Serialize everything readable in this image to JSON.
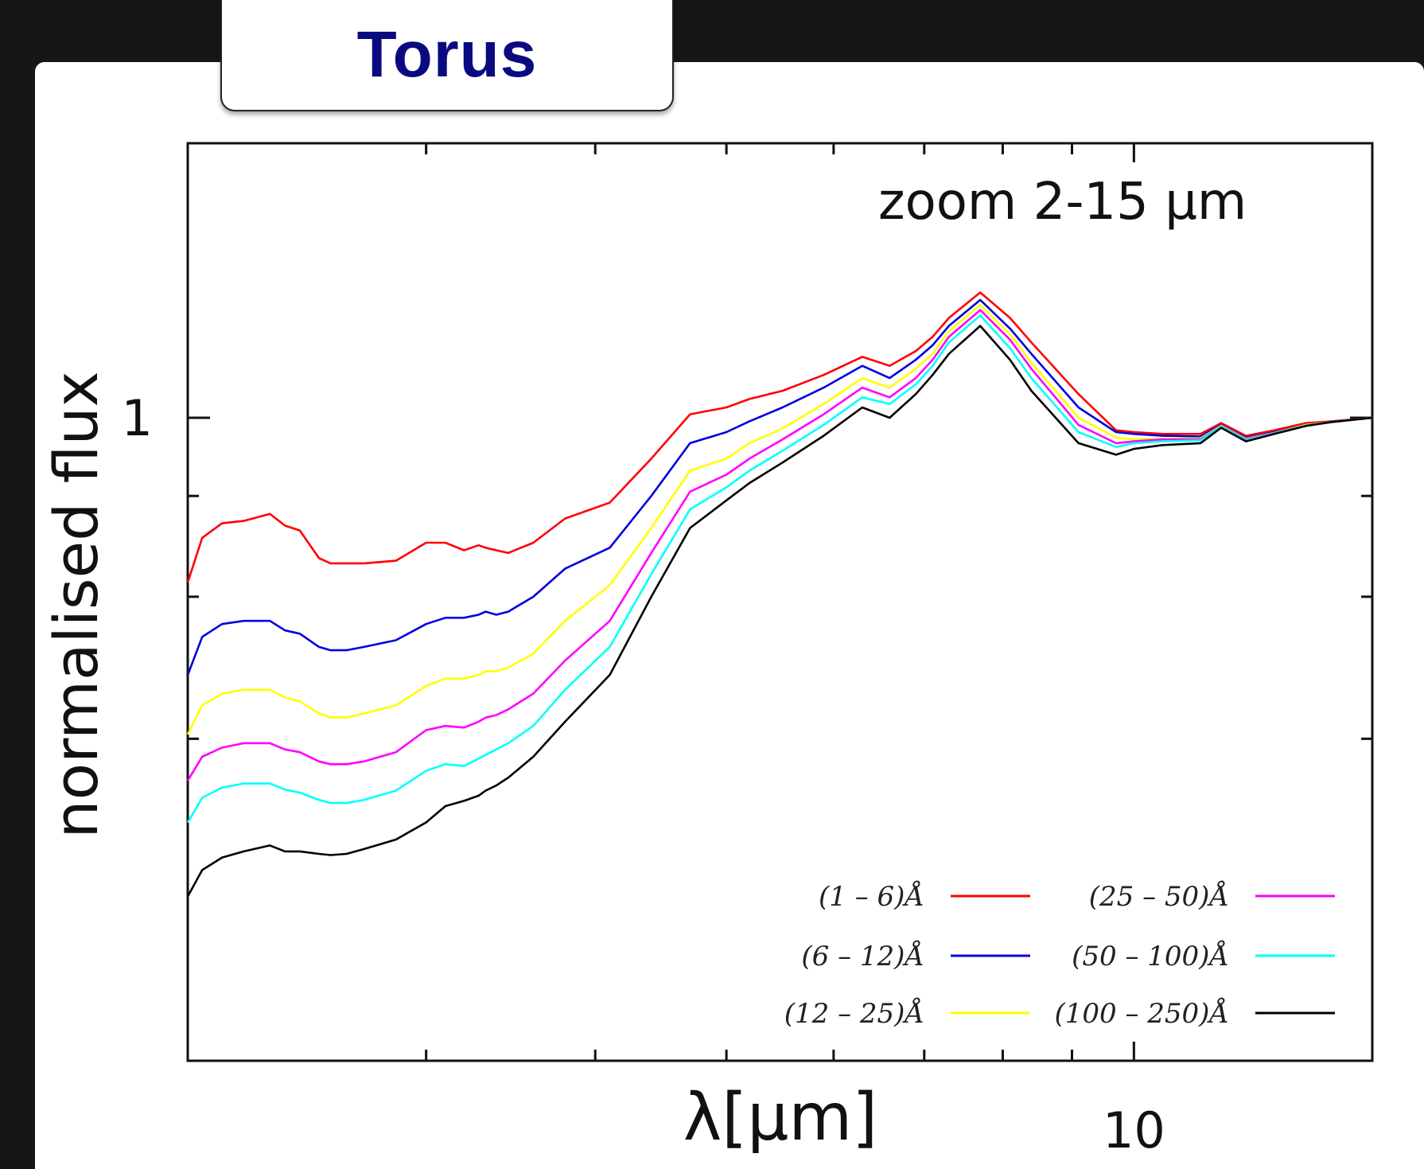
{
  "title": "Torus",
  "chart_data": {
    "type": "line",
    "xlabel": "λ[μm]",
    "ylabel": "normalised flux",
    "annotation": "zoom 2-15 μm",
    "xscale": "log",
    "yscale": "log",
    "xlim": [
      2,
      15
    ],
    "xticks": [
      {
        "value": 10,
        "label": "10"
      }
    ],
    "yticks": [
      {
        "value": 1,
        "label": "1"
      }
    ],
    "legend": {
      "placement": "bottom-right",
      "columns": 2
    },
    "series": [
      {
        "name": "(1 – 6)Å",
        "color": "#ff0000",
        "x": [
          2.0,
          2.05,
          2.12,
          2.2,
          2.3,
          2.36,
          2.42,
          2.5,
          2.55,
          2.62,
          2.7,
          2.85,
          3.0,
          3.1,
          3.2,
          3.28,
          3.32,
          3.38,
          3.45,
          3.6,
          3.8,
          4.1,
          4.4,
          4.7,
          5.0,
          5.2,
          5.5,
          5.9,
          6.3,
          6.6,
          6.9,
          7.1,
          7.3,
          7.7,
          8.1,
          8.4,
          9.1,
          9.7,
          10.0,
          10.5,
          11.2,
          11.6,
          12.1,
          12.7,
          13.4,
          14.0,
          15.0
        ],
        "y": [
          0.625,
          0.71,
          0.74,
          0.745,
          0.76,
          0.735,
          0.725,
          0.67,
          0.66,
          0.66,
          0.66,
          0.665,
          0.7,
          0.7,
          0.685,
          0.695,
          0.69,
          0.685,
          0.68,
          0.7,
          0.75,
          0.785,
          0.89,
          1.01,
          1.03,
          1.055,
          1.08,
          1.13,
          1.19,
          1.16,
          1.21,
          1.26,
          1.33,
          1.43,
          1.33,
          1.24,
          1.07,
          0.965,
          0.96,
          0.955,
          0.955,
          0.985,
          0.95,
          0.965,
          0.985,
          0.99,
          1.0
        ]
      },
      {
        "name": "(6 – 12)Å",
        "color": "#0000e0",
        "x": [
          2.0,
          2.05,
          2.12,
          2.2,
          2.3,
          2.36,
          2.42,
          2.5,
          2.55,
          2.62,
          2.7,
          2.85,
          3.0,
          3.1,
          3.2,
          3.28,
          3.32,
          3.38,
          3.45,
          3.6,
          3.8,
          4.1,
          4.4,
          4.7,
          5.0,
          5.2,
          5.5,
          5.9,
          6.3,
          6.6,
          6.9,
          7.1,
          7.3,
          7.7,
          8.1,
          8.4,
          9.1,
          9.7,
          10.0,
          10.5,
          11.2,
          11.6,
          12.1,
          12.7,
          13.4,
          14.0,
          15.0
        ],
        "y": [
          0.48,
          0.535,
          0.555,
          0.56,
          0.56,
          0.545,
          0.54,
          0.52,
          0.515,
          0.515,
          0.52,
          0.53,
          0.555,
          0.565,
          0.565,
          0.57,
          0.575,
          0.57,
          0.575,
          0.6,
          0.65,
          0.69,
          0.8,
          0.93,
          0.96,
          0.99,
          1.03,
          1.09,
          1.16,
          1.12,
          1.18,
          1.23,
          1.3,
          1.4,
          1.29,
          1.2,
          1.03,
          0.96,
          0.955,
          0.95,
          0.948,
          0.98,
          0.945,
          0.96,
          0.98,
          0.988,
          1.0
        ]
      },
      {
        "name": "(12 – 25)Å",
        "color": "#ffff00",
        "x": [
          2.0,
          2.05,
          2.12,
          2.2,
          2.3,
          2.36,
          2.42,
          2.5,
          2.55,
          2.62,
          2.7,
          2.85,
          3.0,
          3.1,
          3.2,
          3.28,
          3.32,
          3.38,
          3.45,
          3.6,
          3.8,
          4.1,
          4.4,
          4.7,
          5.0,
          5.2,
          5.5,
          5.9,
          6.3,
          6.6,
          6.9,
          7.1,
          7.3,
          7.7,
          8.1,
          8.4,
          9.1,
          9.7,
          10.0,
          10.5,
          11.2,
          11.6,
          12.1,
          12.7,
          13.4,
          14.0,
          15.0
        ],
        "y": [
          0.405,
          0.44,
          0.455,
          0.46,
          0.46,
          0.45,
          0.445,
          0.43,
          0.425,
          0.425,
          0.43,
          0.44,
          0.465,
          0.475,
          0.475,
          0.48,
          0.485,
          0.485,
          0.49,
          0.51,
          0.56,
          0.62,
          0.73,
          0.86,
          0.89,
          0.93,
          0.97,
          1.04,
          1.12,
          1.09,
          1.15,
          1.2,
          1.28,
          1.38,
          1.27,
          1.17,
          1.0,
          0.945,
          0.94,
          0.942,
          0.943,
          0.978,
          0.942,
          0.958,
          0.98,
          0.988,
          1.0
        ]
      },
      {
        "name": "(25 – 50)Å",
        "color": "#ff00ff",
        "x": [
          2.0,
          2.05,
          2.12,
          2.2,
          2.3,
          2.36,
          2.42,
          2.5,
          2.55,
          2.62,
          2.7,
          2.85,
          3.0,
          3.1,
          3.2,
          3.28,
          3.32,
          3.38,
          3.45,
          3.6,
          3.8,
          4.1,
          4.4,
          4.7,
          5.0,
          5.2,
          5.5,
          5.9,
          6.3,
          6.6,
          6.9,
          7.1,
          7.3,
          7.7,
          8.1,
          8.4,
          9.1,
          9.7,
          10.0,
          10.5,
          11.2,
          11.6,
          12.1,
          12.7,
          13.4,
          14.0,
          15.0
        ],
        "y": [
          0.355,
          0.38,
          0.39,
          0.395,
          0.395,
          0.388,
          0.385,
          0.375,
          0.372,
          0.372,
          0.375,
          0.385,
          0.41,
          0.415,
          0.413,
          0.42,
          0.425,
          0.428,
          0.435,
          0.455,
          0.5,
          0.56,
          0.68,
          0.81,
          0.85,
          0.89,
          0.94,
          1.01,
          1.09,
          1.06,
          1.12,
          1.18,
          1.26,
          1.36,
          1.25,
          1.15,
          0.98,
          0.93,
          0.935,
          0.94,
          0.94,
          0.976,
          0.94,
          0.957,
          0.978,
          0.988,
          1.0
        ]
      },
      {
        "name": "(50 – 100)Å",
        "color": "#00ffff",
        "x": [
          2.0,
          2.05,
          2.12,
          2.2,
          2.3,
          2.36,
          2.42,
          2.5,
          2.55,
          2.62,
          2.7,
          2.85,
          3.0,
          3.1,
          3.2,
          3.28,
          3.32,
          3.38,
          3.45,
          3.6,
          3.8,
          4.1,
          4.4,
          4.7,
          5.0,
          5.2,
          5.5,
          5.9,
          6.3,
          6.6,
          6.9,
          7.1,
          7.3,
          7.7,
          8.1,
          8.4,
          9.1,
          9.7,
          10.0,
          10.5,
          11.2,
          11.6,
          12.1,
          12.7,
          13.4,
          14.0,
          15.0
        ],
        "y": [
          0.315,
          0.338,
          0.348,
          0.352,
          0.352,
          0.346,
          0.343,
          0.336,
          0.333,
          0.333,
          0.336,
          0.345,
          0.365,
          0.372,
          0.37,
          0.378,
          0.382,
          0.388,
          0.395,
          0.415,
          0.46,
          0.52,
          0.64,
          0.77,
          0.82,
          0.86,
          0.91,
          0.98,
          1.06,
          1.04,
          1.1,
          1.16,
          1.24,
          1.34,
          1.22,
          1.12,
          0.96,
          0.92,
          0.93,
          0.935,
          0.938,
          0.975,
          0.938,
          0.956,
          0.978,
          0.988,
          1.0
        ]
      },
      {
        "name": "(100 – 250)Å",
        "color": "#000000",
        "x": [
          2.0,
          2.05,
          2.12,
          2.2,
          2.3,
          2.36,
          2.42,
          2.5,
          2.55,
          2.62,
          2.7,
          2.85,
          3.0,
          3.1,
          3.2,
          3.28,
          3.32,
          3.38,
          3.45,
          3.6,
          3.8,
          4.1,
          4.4,
          4.7,
          5.0,
          5.2,
          5.5,
          5.9,
          6.3,
          6.6,
          6.9,
          7.1,
          7.3,
          7.7,
          8.1,
          8.4,
          9.1,
          9.7,
          10.0,
          10.5,
          11.2,
          11.6,
          12.1,
          12.7,
          13.4,
          14.0,
          15.0
        ],
        "y": [
          0.255,
          0.275,
          0.285,
          0.29,
          0.295,
          0.29,
          0.29,
          0.288,
          0.287,
          0.288,
          0.292,
          0.3,
          0.315,
          0.33,
          0.335,
          0.34,
          0.345,
          0.35,
          0.358,
          0.38,
          0.42,
          0.48,
          0.6,
          0.73,
          0.79,
          0.83,
          0.88,
          0.95,
          1.03,
          1.0,
          1.07,
          1.13,
          1.2,
          1.3,
          1.18,
          1.08,
          0.93,
          0.9,
          0.915,
          0.925,
          0.93,
          0.972,
          0.935,
          0.955,
          0.977,
          0.988,
          1.0
        ]
      }
    ]
  }
}
